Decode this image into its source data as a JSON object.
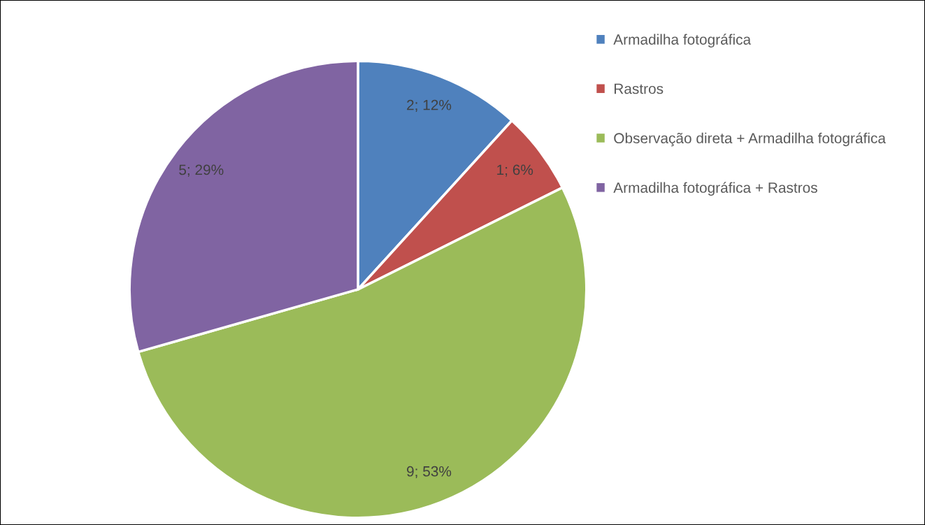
{
  "chart_data": {
    "type": "pie",
    "categories": [
      "Armadilha fotográfica",
      "Rastros",
      "Observação direta + Armadilha fotográfica",
      "Armadilha fotográfica + Rastros"
    ],
    "values": [
      2,
      1,
      9,
      5
    ],
    "colors": [
      "#4f81bd",
      "#c0504d",
      "#9bbb59",
      "#8064a2"
    ],
    "value_labels": [
      "2; 12%",
      "1; 6%",
      "9; 53%",
      "5; 29%"
    ],
    "legend": "right"
  }
}
